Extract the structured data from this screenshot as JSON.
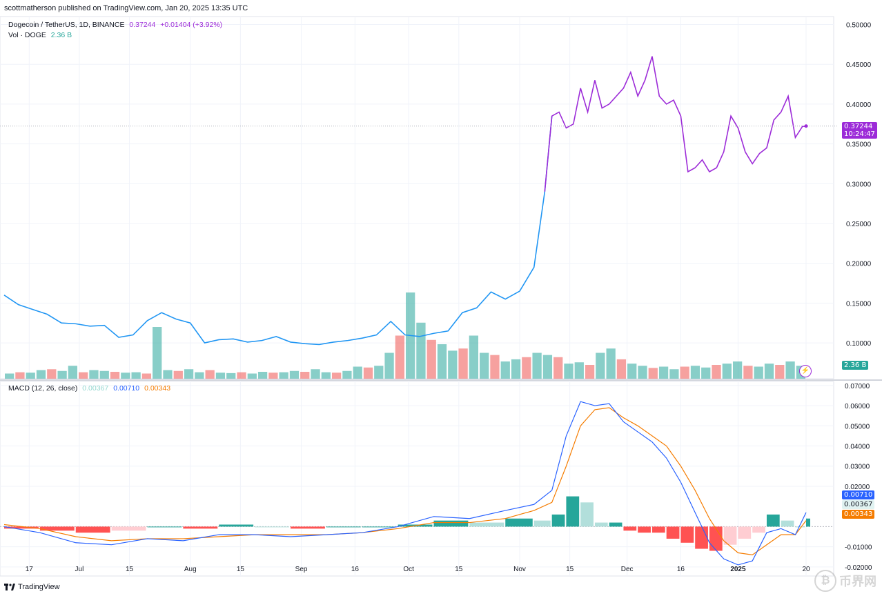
{
  "header": {
    "publisher": "scottmatherson published on TradingView.com, Jan 20, 2025 13:35 UTC"
  },
  "legend": {
    "symbol": "Dogecoin / TetherUS, 1D, BINANCE",
    "last": "0.37244",
    "change": "+0.01404 (+3.92%)",
    "vol_label": "Vol · DOGE",
    "vol_value": "2.36 B",
    "macd_label": "MACD (12, 26, close)",
    "macd_hist": "0.00367",
    "macd_line": "0.00710",
    "macd_signal": "0.00343"
  },
  "tags": {
    "price": "0.37244",
    "countdown": "10:24:47",
    "volume": "2.36 B",
    "macd_line": "0.00710",
    "macd_hist": "0.00367",
    "macd_signal": "0.00343"
  },
  "colors": {
    "price_line_early": "#2196f3",
    "price_line_late": "#9c2bd8",
    "vol_up": "#26a69a",
    "vol_down": "#ef5350",
    "macd_line": "#2962ff",
    "signal_line": "#f57c00",
    "hist_up_strong": "#26a69a",
    "hist_up_weak": "#b2dfdb",
    "hist_down_strong": "#ff5252",
    "hist_down_weak": "#ffcdd2"
  },
  "footer": {
    "brand": "TradingView",
    "watermark": "币界网"
  },
  "chart_data": [
    {
      "type": "line",
      "title": "Dogecoin / TetherUS, 1D, BINANCE",
      "x_ticks": [
        "17",
        "Jul",
        "15",
        "Aug",
        "15",
        "Sep",
        "16",
        "Oct",
        "15",
        "Nov",
        "15",
        "Dec",
        "16",
        "2025",
        "20"
      ],
      "y_ticks": [
        "0.50000",
        "0.45000",
        "0.40000",
        "0.35000",
        "0.30000",
        "0.25000",
        "0.20000",
        "0.15000",
        "0.10000"
      ],
      "ylim": [
        0.055,
        0.51
      ],
      "series": [
        {
          "name": "DOGE/USDT",
          "x": [
            "Jun 10",
            "Jun 14",
            "Jun 18",
            "Jun 22",
            "Jun 26",
            "Jun 30",
            "Jul 4",
            "Jul 8",
            "Jul 12",
            "Jul 16",
            "Jul 20",
            "Jul 24",
            "Jul 28",
            "Aug 1",
            "Aug 5",
            "Aug 9",
            "Aug 13",
            "Aug 17",
            "Aug 21",
            "Aug 25",
            "Aug 29",
            "Sep 2",
            "Sep 6",
            "Sep 10",
            "Sep 14",
            "Sep 18",
            "Sep 22",
            "Sep 26",
            "Sep 30",
            "Oct 4",
            "Oct 8",
            "Oct 12",
            "Oct 16",
            "Oct 20",
            "Oct 24",
            "Oct 28",
            "Nov 1",
            "Nov 5",
            "Nov 8",
            "Nov 10",
            "Nov 12",
            "Nov 14",
            "Nov 16",
            "Nov 18",
            "Nov 20",
            "Nov 22",
            "Nov 24",
            "Nov 26",
            "Nov 28",
            "Nov 30",
            "Dec 2",
            "Dec 4",
            "Dec 6",
            "Dec 8",
            "Dec 10",
            "Dec 12",
            "Dec 14",
            "Dec 16",
            "Dec 18",
            "Dec 20",
            "Dec 22",
            "Dec 24",
            "Dec 26",
            "Dec 28",
            "Dec 30",
            "Jan 1",
            "Jan 3",
            "Jan 5",
            "Jan 7",
            "Jan 9",
            "Jan 11",
            "Jan 13",
            "Jan 15",
            "Jan 17",
            "Jan 19",
            "Jan 20"
          ],
          "values": [
            0.16,
            0.148,
            0.142,
            0.136,
            0.125,
            0.124,
            0.121,
            0.122,
            0.107,
            0.11,
            0.128,
            0.138,
            0.13,
            0.125,
            0.1,
            0.104,
            0.105,
            0.101,
            0.103,
            0.108,
            0.101,
            0.099,
            0.098,
            0.101,
            0.103,
            0.106,
            0.11,
            0.127,
            0.11,
            0.108,
            0.112,
            0.115,
            0.138,
            0.144,
            0.164,
            0.155,
            0.165,
            0.195,
            0.29,
            0.385,
            0.39,
            0.37,
            0.375,
            0.42,
            0.39,
            0.43,
            0.395,
            0.4,
            0.41,
            0.42,
            0.44,
            0.41,
            0.43,
            0.46,
            0.41,
            0.4,
            0.405,
            0.385,
            0.315,
            0.32,
            0.33,
            0.315,
            0.32,
            0.34,
            0.385,
            0.37,
            0.34,
            0.325,
            0.338,
            0.345,
            0.38,
            0.39,
            0.41,
            0.358,
            0.372,
            0.372
          ]
        }
      ],
      "last_value": 0.37244
    },
    {
      "type": "bar",
      "title": "Vol · DOGE",
      "value_label": "2.36 B",
      "series": [
        {
          "name": "Vol · DOGE",
          "note_relative": true,
          "values": [
            0.12,
            0.15,
            0.14,
            0.2,
            0.22,
            0.18,
            0.3,
            0.15,
            0.2,
            0.18,
            0.16,
            0.14,
            0.15,
            0.12,
            1.2,
            0.2,
            0.18,
            0.22,
            0.15,
            0.2,
            0.14,
            0.13,
            0.15,
            0.12,
            0.16,
            0.14,
            0.15,
            0.18,
            0.16,
            0.22,
            0.15,
            0.14,
            0.18,
            0.28,
            0.26,
            0.3,
            0.6,
            1.0,
            2.0,
            1.3,
            0.9,
            0.8,
            0.65,
            0.7,
            1.0,
            0.6,
            0.55,
            0.4,
            0.45,
            0.5,
            0.6,
            0.55,
            0.5,
            0.35,
            0.38,
            0.32,
            0.6,
            0.7,
            0.45,
            0.35,
            0.3,
            0.25,
            0.28,
            0.22,
            0.28,
            0.3,
            0.26,
            0.32,
            0.35,
            0.4,
            0.3,
            0.28,
            0.35,
            0.32,
            0.4,
            0.3
          ]
        }
      ]
    },
    {
      "type": "line",
      "title": "MACD (12, 26, close)",
      "y_ticks": [
        "0.07000",
        "0.06000",
        "0.05000",
        "0.04000",
        "0.03000",
        "0.02000",
        "-0.01000",
        "-0.02000"
      ],
      "ylim": [
        -0.0245,
        0.072
      ],
      "x": [
        "Jun 10",
        "Jun 20",
        "Jun 30",
        "Jul 10",
        "Jul 20",
        "Jul 30",
        "Aug 9",
        "Aug 19",
        "Aug 29",
        "Sep 8",
        "Sep 18",
        "Sep 28",
        "Oct 8",
        "Oct 18",
        "Oct 28",
        "Nov 5",
        "Nov 10",
        "Nov 14",
        "Nov 18",
        "Nov 22",
        "Nov 26",
        "Nov 30",
        "Dec 4",
        "Dec 8",
        "Dec 12",
        "Dec 16",
        "Dec 20",
        "Dec 24",
        "Dec 28",
        "Jan 1",
        "Jan 5",
        "Jan 9",
        "Jan 13",
        "Jan 17",
        "Jan 20"
      ],
      "series": [
        {
          "name": "MACD",
          "values": [
            0.0,
            -0.003,
            -0.008,
            -0.009,
            -0.006,
            -0.007,
            -0.004,
            -0.004,
            -0.005,
            -0.004,
            -0.003,
            0.0,
            0.005,
            0.004,
            0.008,
            0.011,
            0.018,
            0.045,
            0.062,
            0.06,
            0.061,
            0.052,
            0.047,
            0.042,
            0.034,
            0.022,
            0.007,
            -0.008,
            -0.016,
            -0.019,
            -0.017,
            -0.003,
            -0.001,
            -0.004,
            0.007
          ]
        },
        {
          "name": "Signal",
          "values": [
            0.001,
            -0.001,
            -0.005,
            -0.007,
            -0.006,
            -0.006,
            -0.005,
            -0.004,
            -0.004,
            -0.004,
            -0.003,
            -0.001,
            0.002,
            0.002,
            0.004,
            0.008,
            0.012,
            0.03,
            0.05,
            0.058,
            0.059,
            0.054,
            0.05,
            0.045,
            0.04,
            0.03,
            0.018,
            0.004,
            -0.007,
            -0.013,
            -0.014,
            -0.009,
            -0.004,
            -0.004,
            0.003
          ]
        },
        {
          "name": "Histogram",
          "values": [
            -0.001,
            -0.002,
            -0.003,
            -0.002,
            0.0,
            -0.001,
            0.001,
            0.0,
            -0.001,
            0.0,
            0.0,
            0.001,
            0.003,
            0.002,
            0.004,
            0.003,
            0.006,
            0.015,
            0.012,
            0.002,
            0.002,
            -0.002,
            -0.003,
            -0.003,
            -0.006,
            -0.008,
            -0.011,
            -0.012,
            -0.009,
            -0.006,
            -0.003,
            0.006,
            0.003,
            0.0,
            0.004
          ]
        }
      ]
    }
  ]
}
